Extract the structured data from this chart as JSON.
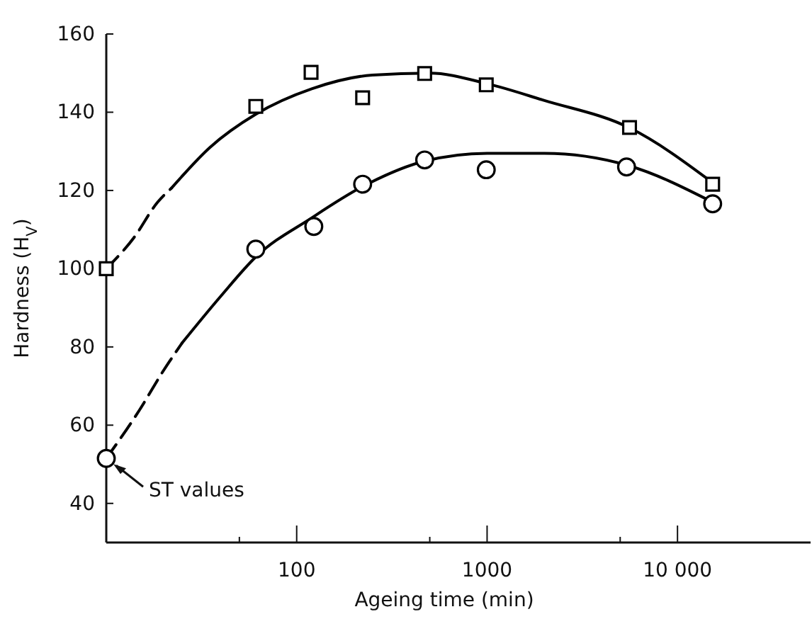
{
  "chart_data": {
    "type": "scatter",
    "xlabel": "Ageing time (min)",
    "ylabel": "Hardness (H$_{V}$)",
    "log": "x",
    "xlim": [
      10,
      50000
    ],
    "ylim": [
      30,
      160
    ],
    "xticks": [
      {
        "value": 50,
        "label": null
      },
      100,
      {
        "value": 500,
        "label": null
      },
      1000,
      {
        "value": 5000,
        "label": null
      },
      {
        "value": 10000,
        "label": "10 000"
      }
    ],
    "yticks": [
      40,
      60,
      80,
      100,
      120,
      140,
      160
    ],
    "grid": false,
    "series": [
      {
        "marker": "square",
        "color": "#000000",
        "x": [
          10,
          61,
          119,
          222,
          470,
          990,
          5600,
          15300
        ],
        "values": [
          100,
          141.5,
          150.2,
          143.7,
          149.9,
          147,
          136.1,
          121.6
        ]
      },
      {
        "marker": "circle",
        "color": "#000000",
        "x": [
          10,
          61,
          123,
          222,
          470,
          990,
          5400,
          15300
        ],
        "values": [
          51.5,
          105,
          110.8,
          121.6,
          127.8,
          125.3,
          126,
          116.6
        ]
      },
      {
        "type": "line",
        "marker": "none",
        "line_style": "dashed",
        "color": "#000000",
        "x": [
          10,
          14,
          18.6,
          22
        ],
        "values": [
          100,
          108,
          117,
          120.6
        ]
      },
      {
        "type": "line",
        "marker": "none",
        "line_style": "solid",
        "color": "#000000",
        "x": [
          22,
          35,
          61,
          120,
          250,
          500,
          1000,
          2000,
          5600,
          15300
        ],
        "values": [
          120.6,
          131,
          139.5,
          146,
          149.5,
          150,
          147.3,
          143,
          136,
          122
        ]
      },
      {
        "type": "line",
        "marker": "none",
        "line_style": "dashed",
        "color": "#000000",
        "x": [
          10,
          15,
          20,
          25
        ],
        "values": [
          51.5,
          64,
          74,
          81
        ]
      },
      {
        "type": "line",
        "marker": "none",
        "line_style": "solid",
        "color": "#000000",
        "x": [
          25,
          40,
          61,
          120,
          222,
          470,
          1000,
          2000,
          5400,
          15300
        ],
        "values": [
          81,
          93,
          103,
          113,
          121,
          127.5,
          129.5,
          129.5,
          126.5,
          117
        ]
      }
    ],
    "annotations": [
      {
        "text": "ST values",
        "x": 10,
        "y": 51.5
      }
    ]
  }
}
